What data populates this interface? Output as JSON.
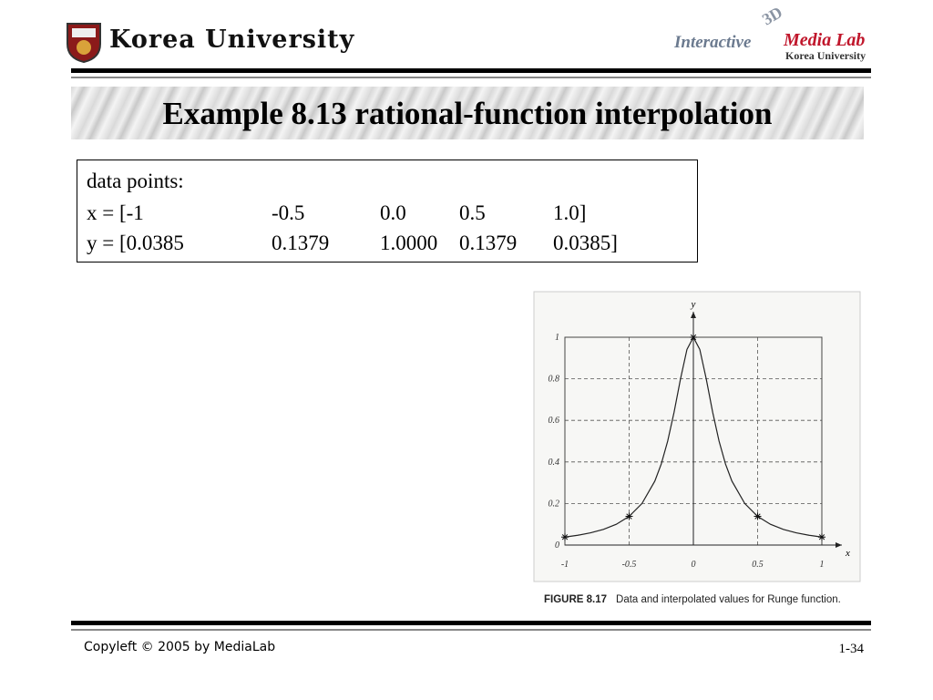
{
  "header": {
    "university": "Korea University",
    "lab_logo": {
      "line1": "Interactive",
      "badge": "3D",
      "line2": "Media Lab",
      "line3": "Korea University"
    }
  },
  "title": "Example 8.13 rational-function interpolation",
  "data_box": {
    "heading": "data points:",
    "x_row": [
      "x = [-1",
      "-0.5",
      "0.0",
      "0.5",
      "1.0]"
    ],
    "y_row": [
      "y = [0.0385",
      "0.1379",
      "1.0000",
      "0.1379",
      "0.0385]"
    ]
  },
  "figure": {
    "x_label": "x",
    "y_label": "y",
    "xlim": [
      -1,
      1
    ],
    "ylim": [
      0,
      1
    ],
    "xticks": [
      -1,
      -0.5,
      0,
      0.5,
      1
    ],
    "yticks": [
      0,
      0.2,
      0.4,
      0.6,
      0.8,
      1
    ],
    "points": {
      "x": [
        -1,
        -0.5,
        0,
        0.5,
        1
      ],
      "y": [
        0.0385,
        0.1379,
        1.0,
        0.1379,
        0.0385
      ]
    },
    "curve": {
      "x": [
        -1,
        -0.9,
        -0.8,
        -0.7,
        -0.6,
        -0.5,
        -0.4,
        -0.3,
        -0.25,
        -0.2,
        -0.15,
        -0.1,
        -0.05,
        0,
        0.05,
        0.1,
        0.15,
        0.2,
        0.25,
        0.3,
        0.4,
        0.5,
        0.6,
        0.7,
        0.8,
        0.9,
        1
      ],
      "y": [
        0.0385,
        0.0471,
        0.0588,
        0.0755,
        0.1,
        0.1379,
        0.2,
        0.3077,
        0.3902,
        0.5,
        0.64,
        0.8,
        0.9412,
        1,
        0.9412,
        0.8,
        0.64,
        0.5,
        0.3902,
        0.3077,
        0.2,
        0.1379,
        0.1,
        0.0755,
        0.0588,
        0.0471,
        0.0385
      ]
    },
    "caption_label": "FIGURE 8.17",
    "caption": "Data and interpolated values for Runge function."
  },
  "footer": {
    "copyright": "Copyleft © 2005 by MediaLab",
    "page": "1-34"
  }
}
